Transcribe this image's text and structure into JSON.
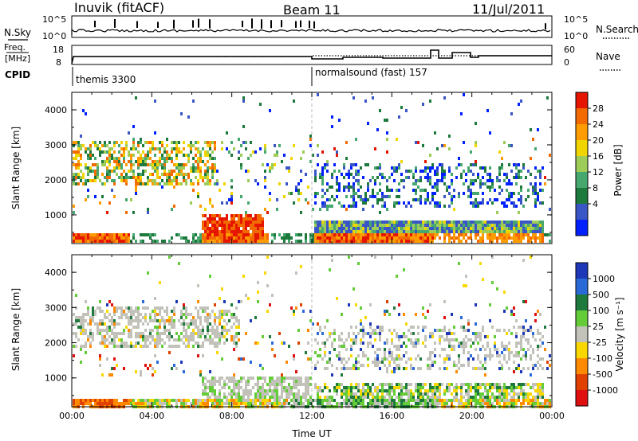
{
  "header": {
    "station": "Inuvik (fitACF)",
    "beam": "Beam 11",
    "date": "11/Jul/2011"
  },
  "top_panels": {
    "nsky_label": "N.Sky",
    "nsearch_label": "N.Search",
    "nsky_ticks": [
      "10^5",
      "10^0"
    ],
    "nsearch_ticks": [
      "10^5",
      "10^0"
    ],
    "freq_label_1": "Freq.",
    "freq_label_2": "[MHz]",
    "freq_ticks": [
      "18",
      "8"
    ],
    "nave_label": "Nave",
    "nave_ticks": [
      "60",
      "0"
    ],
    "cpid_label": "CPID",
    "cpid_segments": [
      {
        "label": "themis 3300",
        "start": "00:00",
        "end": "12:00"
      },
      {
        "label": "normalsound (fast) 157",
        "start": "12:00",
        "end": "00:00"
      }
    ]
  },
  "chart_data": [
    {
      "type": "heatmap",
      "title": "",
      "ylabel": "Slant Range [km]",
      "xlabel": "",
      "y_ticks": [
        "1000",
        "2000",
        "3000",
        "4000"
      ],
      "ylim": [
        180,
        4500
      ],
      "colorbar_label": "Power [dB]",
      "colorbar_ticks": [
        "4",
        "8",
        "12",
        "16",
        "20",
        "24",
        "28"
      ],
      "colorbar_colors": [
        "#0020ff",
        "#3a56c6",
        "#1d7a3c",
        "#47a86f",
        "#9dcc58",
        "#f0d500",
        "#ff9c00",
        "#f36a00",
        "#e51500"
      ]
    },
    {
      "type": "heatmap",
      "title": "",
      "ylabel": "Slant Range [km]",
      "xlabel": "Time UT",
      "x_ticks": [
        "00:00",
        "04:00",
        "08:00",
        "12:00",
        "16:00",
        "20:00",
        "00:00"
      ],
      "y_ticks": [
        "1000",
        "2000",
        "3000",
        "4000"
      ],
      "ylim": [
        180,
        4500
      ],
      "colorbar_label": "Velocity [m s⁻¹]",
      "colorbar_ticks": [
        "1000",
        "500",
        "100",
        "25",
        "-25",
        "-100",
        "-500",
        "-1000"
      ],
      "colorbar_colors": [
        "#1d37b8",
        "#2a6ad8",
        "#1e7a3c",
        "#64cc38",
        "#c2c2ba",
        "#f8d800",
        "#ff8a00",
        "#e04000",
        "#e01010"
      ]
    }
  ]
}
